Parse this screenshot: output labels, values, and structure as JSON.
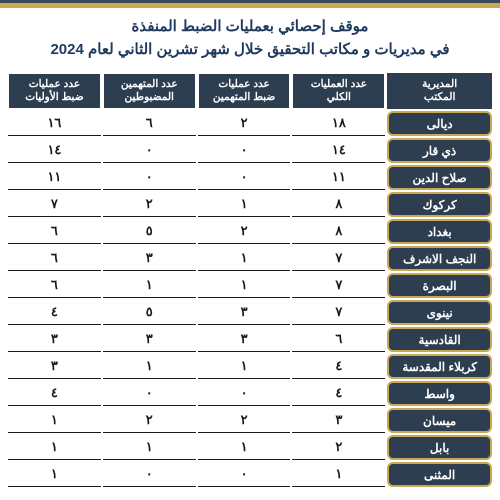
{
  "title": {
    "line1": "موقف إحصائي بعمليات الضبط المنفذة",
    "line2": "في مديريات و مكاتب التحقيق خلال شهر تشرين الثاني لعام 2024",
    "color": "#1e3a5f"
  },
  "table": {
    "header_bg": "#2d3e50",
    "header_text_color": "#ffffff",
    "row_border_color": "#1a1a1a",
    "headers": {
      "directorate": "المديرية\nالمكتب",
      "total_ops": "عدد العمليات\nالكلي",
      "accused_ops": "عدد عمليات\nضبط المتهمين",
      "accused_count": "عدد المتهمين\nالمضبوطين",
      "primary_ops": "عدد عمليات\nضبط الأوليات"
    },
    "rows": [
      {
        "dir": "ديالى",
        "total": "١٨",
        "accused_ops": "٢",
        "accused_count": "٦",
        "primary": "١٦",
        "bg": "#2d3e50",
        "border": "#c9a855"
      },
      {
        "dir": "ذي قار",
        "total": "١٤",
        "accused_ops": "٠",
        "accused_count": "٠",
        "primary": "١٤",
        "bg": "#2d3e50",
        "border": "#c9a855"
      },
      {
        "dir": "صلاح الدين",
        "total": "١١",
        "accused_ops": "٠",
        "accused_count": "٠",
        "primary": "١١",
        "bg": "#2d3e50",
        "border": "#c9a855"
      },
      {
        "dir": "كركوك",
        "total": "٨",
        "accused_ops": "١",
        "accused_count": "٢",
        "primary": "٧",
        "bg": "#2d3e50",
        "border": "#c9a855"
      },
      {
        "dir": "بغداد",
        "total": "٨",
        "accused_ops": "٢",
        "accused_count": "٥",
        "primary": "٦",
        "bg": "#2d3e50",
        "border": "#c9a855"
      },
      {
        "dir": "النجف الاشرف",
        "total": "٧",
        "accused_ops": "١",
        "accused_count": "٣",
        "primary": "٦",
        "bg": "#2d3e50",
        "border": "#c9a855"
      },
      {
        "dir": "البصرة",
        "total": "٧",
        "accused_ops": "١",
        "accused_count": "١",
        "primary": "٦",
        "bg": "#2d3e50",
        "border": "#c9a855"
      },
      {
        "dir": "نينوى",
        "total": "٧",
        "accused_ops": "٣",
        "accused_count": "٥",
        "primary": "٤",
        "bg": "#2d3e50",
        "border": "#c9a855"
      },
      {
        "dir": "القادسية",
        "total": "٦",
        "accused_ops": "٣",
        "accused_count": "٣",
        "primary": "٣",
        "bg": "#2d3e50",
        "border": "#c9a855"
      },
      {
        "dir": "كربلاء المقدسة",
        "total": "٤",
        "accused_ops": "١",
        "accused_count": "١",
        "primary": "٣",
        "bg": "#2d3e50",
        "border": "#c9a855"
      },
      {
        "dir": "واسط",
        "total": "٤",
        "accused_ops": "٠",
        "accused_count": "٠",
        "primary": "٤",
        "bg": "#2d3e50",
        "border": "#c9a855"
      },
      {
        "dir": "ميسان",
        "total": "٣",
        "accused_ops": "٢",
        "accused_count": "٢",
        "primary": "١",
        "bg": "#2d3e50",
        "border": "#c9a855"
      },
      {
        "dir": "بابل",
        "total": "٢",
        "accused_ops": "١",
        "accused_count": "١",
        "primary": "١",
        "bg": "#2d3e50",
        "border": "#c9a855"
      },
      {
        "dir": "المثنى",
        "total": "١",
        "accused_ops": "٠",
        "accused_count": "٠",
        "primary": "١",
        "bg": "#2d3e50",
        "border": "#c9a855"
      }
    ]
  }
}
